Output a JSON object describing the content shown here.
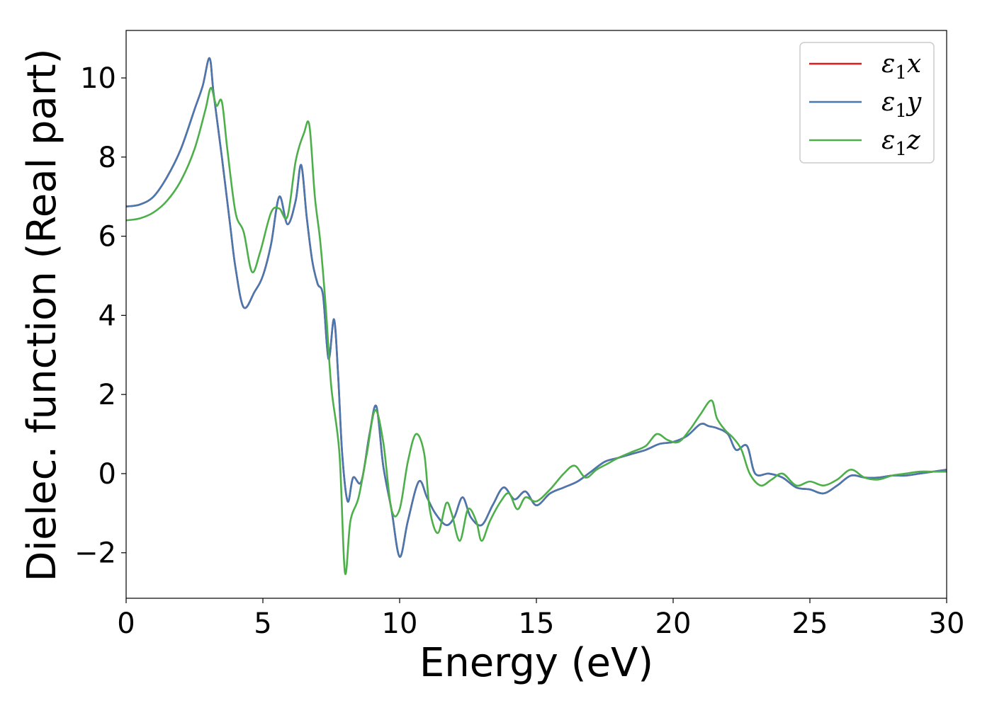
{
  "chart_data": {
    "type": "line",
    "xlabel": "Energy (eV)",
    "ylabel": "Dielec. function (Real part)",
    "xlim": [
      0,
      30
    ],
    "ylim": [
      -3.15,
      11.2
    ],
    "xticks": [
      0,
      5,
      10,
      15,
      20,
      25,
      30
    ],
    "xtick_labels": [
      "0",
      "5",
      "10",
      "15",
      "20",
      "25",
      "30"
    ],
    "yticks": [
      -2,
      0,
      2,
      4,
      6,
      8,
      10
    ],
    "ytick_labels": [
      "−2",
      "0",
      "2",
      "4",
      "6",
      "8",
      "10"
    ],
    "grid": false,
    "legend_position": "top-right",
    "series": [
      {
        "name": "ε1x",
        "legend_base": "ε",
        "legend_sub": "1",
        "legend_tail": "x",
        "color": "#e41a1c",
        "x": [
          0,
          0.5,
          1,
          1.5,
          2,
          2.5,
          2.8,
          3.05,
          3.2,
          3.5,
          3.8,
          4.0,
          4.3,
          4.7,
          5.0,
          5.3,
          5.6,
          5.9,
          6.2,
          6.4,
          6.6,
          6.8,
          7.0,
          7.2,
          7.4,
          7.6,
          7.75,
          7.9,
          8.1,
          8.3,
          8.6,
          8.9,
          9.15,
          9.4,
          9.7,
          10.0,
          10.3,
          10.7,
          11.0,
          11.3,
          11.7,
          12.0,
          12.3,
          12.6,
          13.0,
          13.4,
          13.8,
          14.2,
          14.6,
          15.0,
          15.5,
          16.0,
          16.5,
          17.0,
          17.5,
          18.0,
          18.5,
          19.0,
          19.5,
          20.0,
          20.5,
          21.0,
          21.3,
          21.6,
          22.0,
          22.3,
          22.7,
          23.0,
          23.5,
          24.0,
          24.5,
          25.0,
          25.5,
          26.0,
          26.5,
          27.0,
          27.5,
          28.0,
          28.5,
          29.0,
          29.5,
          30.0
        ],
        "values": [
          6.75,
          6.8,
          7.0,
          7.5,
          8.2,
          9.2,
          9.8,
          10.5,
          9.6,
          8.0,
          6.3,
          5.2,
          4.2,
          4.6,
          5.0,
          5.8,
          7.0,
          6.3,
          6.9,
          7.8,
          6.5,
          5.4,
          4.8,
          4.5,
          2.9,
          3.9,
          2.5,
          0.5,
          -0.7,
          -0.1,
          -0.2,
          1.0,
          1.7,
          0.2,
          -0.9,
          -2.1,
          -1.2,
          -0.2,
          -0.6,
          -1.0,
          -1.3,
          -1.1,
          -0.6,
          -1.1,
          -1.3,
          -0.8,
          -0.35,
          -0.65,
          -0.45,
          -0.8,
          -0.5,
          -0.35,
          -0.2,
          0.05,
          0.3,
          0.4,
          0.5,
          0.6,
          0.75,
          0.8,
          0.95,
          1.25,
          1.2,
          1.15,
          1.0,
          0.6,
          0.7,
          0.0,
          0.0,
          -0.1,
          -0.35,
          -0.4,
          -0.5,
          -0.3,
          -0.05,
          -0.1,
          -0.1,
          -0.05,
          -0.05,
          0.0,
          0.05,
          0.1
        ]
      },
      {
        "name": "ε1y",
        "legend_base": "ε",
        "legend_sub": "1",
        "legend_tail": "y",
        "color": "#4878b0",
        "x": [
          0,
          0.5,
          1,
          1.5,
          2,
          2.5,
          2.8,
          3.05,
          3.2,
          3.5,
          3.8,
          4.0,
          4.3,
          4.7,
          5.0,
          5.3,
          5.6,
          5.9,
          6.2,
          6.4,
          6.6,
          6.8,
          7.0,
          7.2,
          7.4,
          7.6,
          7.75,
          7.9,
          8.1,
          8.3,
          8.6,
          8.9,
          9.15,
          9.4,
          9.7,
          10.0,
          10.3,
          10.7,
          11.0,
          11.3,
          11.7,
          12.0,
          12.3,
          12.6,
          13.0,
          13.4,
          13.8,
          14.2,
          14.6,
          15.0,
          15.5,
          16.0,
          16.5,
          17.0,
          17.5,
          18.0,
          18.5,
          19.0,
          19.5,
          20.0,
          20.5,
          21.0,
          21.3,
          21.6,
          22.0,
          22.3,
          22.7,
          23.0,
          23.5,
          24.0,
          24.5,
          25.0,
          25.5,
          26.0,
          26.5,
          27.0,
          27.5,
          28.0,
          28.5,
          29.0,
          29.5,
          30.0
        ],
        "values": [
          6.75,
          6.8,
          7.0,
          7.5,
          8.2,
          9.2,
          9.8,
          10.5,
          9.6,
          8.0,
          6.3,
          5.2,
          4.2,
          4.6,
          5.0,
          5.8,
          7.0,
          6.3,
          6.9,
          7.8,
          6.5,
          5.4,
          4.8,
          4.5,
          2.9,
          3.9,
          2.5,
          0.5,
          -0.7,
          -0.1,
          -0.2,
          1.0,
          1.7,
          0.2,
          -0.9,
          -2.1,
          -1.2,
          -0.2,
          -0.6,
          -1.0,
          -1.3,
          -1.1,
          -0.6,
          -1.1,
          -1.3,
          -0.8,
          -0.35,
          -0.65,
          -0.45,
          -0.8,
          -0.5,
          -0.35,
          -0.2,
          0.05,
          0.3,
          0.4,
          0.5,
          0.6,
          0.75,
          0.8,
          0.95,
          1.25,
          1.2,
          1.15,
          1.0,
          0.6,
          0.7,
          0.0,
          0.0,
          -0.1,
          -0.35,
          -0.4,
          -0.5,
          -0.3,
          -0.05,
          -0.1,
          -0.1,
          -0.05,
          -0.05,
          0.0,
          0.05,
          0.1
        ]
      },
      {
        "name": "ε1z",
        "legend_base": "ε",
        "legend_sub": "1",
        "legend_tail": "z",
        "color": "#4daf4a",
        "x": [
          0,
          0.5,
          1,
          1.5,
          2,
          2.5,
          2.9,
          3.1,
          3.3,
          3.5,
          3.7,
          4.0,
          4.3,
          4.6,
          4.9,
          5.3,
          5.6,
          5.9,
          6.2,
          6.5,
          6.7,
          6.9,
          7.1,
          7.3,
          7.5,
          7.8,
          8.0,
          8.2,
          8.5,
          8.8,
          9.1,
          9.4,
          9.7,
          10.0,
          10.3,
          10.6,
          10.9,
          11.1,
          11.4,
          11.7,
          11.9,
          12.2,
          12.5,
          12.8,
          13.0,
          13.3,
          13.7,
          14.0,
          14.3,
          14.6,
          15.0,
          15.5,
          16.0,
          16.4,
          16.8,
          17.2,
          17.6,
          18.0,
          18.5,
          19.0,
          19.4,
          19.8,
          20.2,
          20.6,
          21.0,
          21.4,
          21.6,
          21.9,
          22.2,
          22.5,
          22.8,
          23.2,
          23.6,
          24.0,
          24.5,
          25.0,
          25.5,
          26.0,
          26.5,
          27.0,
          27.5,
          28.0,
          28.5,
          29.0,
          29.5,
          30.0
        ],
        "values": [
          6.4,
          6.45,
          6.6,
          6.9,
          7.4,
          8.2,
          9.2,
          9.75,
          9.3,
          9.4,
          8.2,
          6.6,
          6.1,
          5.1,
          5.6,
          6.6,
          6.7,
          6.5,
          7.9,
          8.6,
          8.8,
          7.0,
          5.85,
          4.2,
          2.2,
          0.5,
          -2.5,
          -1.2,
          -0.6,
          0.5,
          1.6,
          0.8,
          -0.9,
          -0.9,
          0.3,
          1.0,
          0.5,
          -0.9,
          -1.5,
          -0.75,
          -1.0,
          -1.7,
          -0.9,
          -1.2,
          -1.7,
          -1.2,
          -0.7,
          -0.5,
          -0.9,
          -0.6,
          -0.7,
          -0.4,
          0.0,
          0.2,
          -0.1,
          0.1,
          0.25,
          0.4,
          0.55,
          0.7,
          1.0,
          0.85,
          0.8,
          1.1,
          1.5,
          1.85,
          1.4,
          1.1,
          0.9,
          0.6,
          0.0,
          -0.3,
          -0.15,
          0.0,
          -0.3,
          -0.2,
          -0.3,
          -0.15,
          0.1,
          -0.1,
          -0.15,
          -0.05,
          0.0,
          0.05,
          0.05,
          0.05
        ]
      }
    ]
  }
}
